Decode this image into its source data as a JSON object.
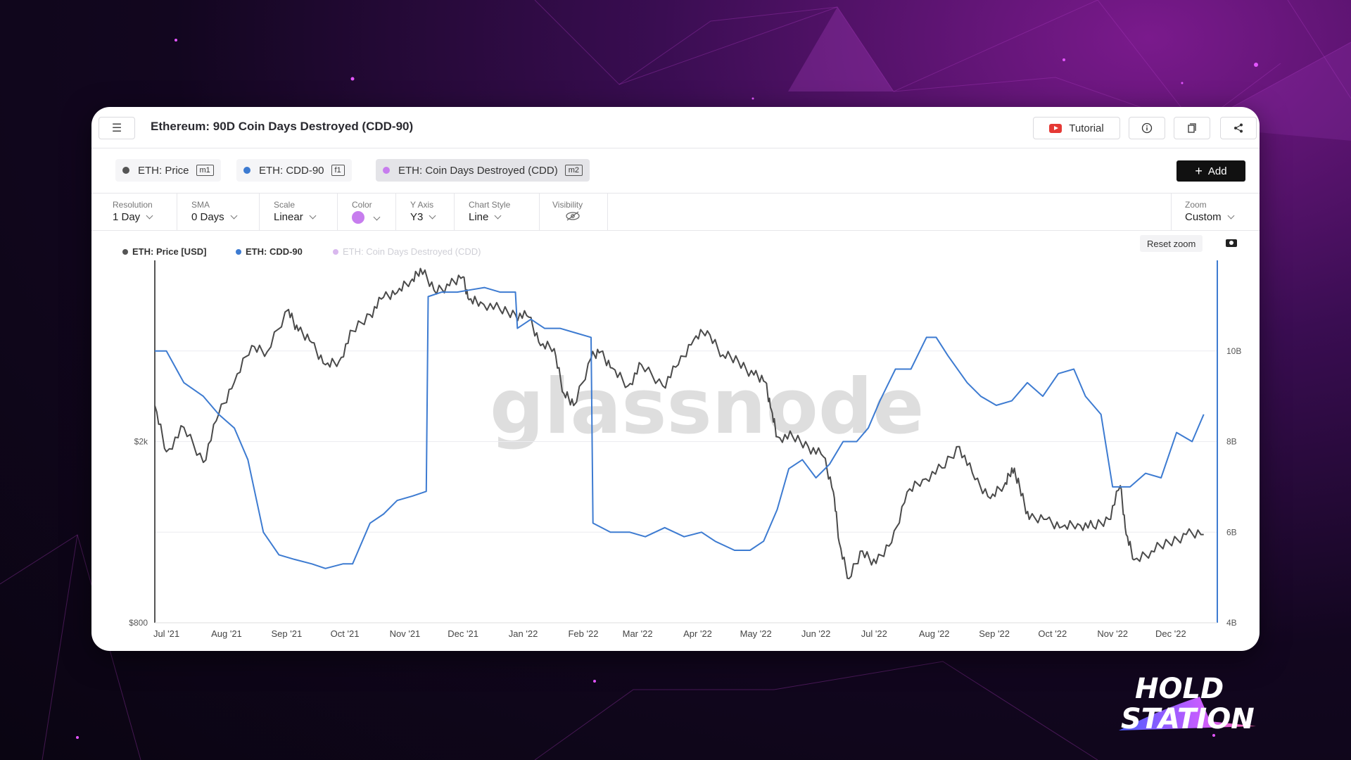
{
  "header": {
    "title": "Ethereum: 90D Coin Days Destroyed (CDD-90)",
    "tutorial_label": "Tutorial"
  },
  "metrics": [
    {
      "label": "ETH: Price",
      "tag": "m1",
      "color": "#555555"
    },
    {
      "label": "ETH: CDD-90",
      "tag": "f1",
      "color": "#3d7bd1"
    },
    {
      "label": "ETH: Coin Days Destroyed (CDD)",
      "tag": "m2",
      "color": "#c77dee"
    }
  ],
  "add_label": "Add",
  "controls": {
    "resolution": {
      "label": "Resolution",
      "value": "1 Day"
    },
    "sma": {
      "label": "SMA",
      "value": "0 Days"
    },
    "scale": {
      "label": "Scale",
      "value": "Linear"
    },
    "color": {
      "label": "Color",
      "value": "#c77dee"
    },
    "yaxis": {
      "label": "Y Axis",
      "value": "Y3"
    },
    "chart_style": {
      "label": "Chart Style",
      "value": "Line"
    },
    "visibility": {
      "label": "Visibility",
      "icon": "eye-slash-icon"
    },
    "zoom": {
      "label": "Zoom",
      "value": "Custom"
    }
  },
  "reset_zoom_label": "Reset zoom",
  "watermark": "glassnode",
  "logo": {
    "line1": "HOLD",
    "line2": "STATION"
  },
  "chart_data": {
    "type": "line",
    "legend": [
      "ETH: Price [USD]",
      "ETH: CDD-90",
      "ETH: Coin Days Destroyed (CDD)"
    ],
    "legend_placement": "top-left",
    "x_ticks": [
      "Jul '21",
      "Aug '21",
      "Sep '21",
      "Oct '21",
      "Nov '21",
      "Dec '21",
      "Jan '22",
      "Feb '22",
      "Mar '22",
      "Apr '22",
      "May '22",
      "Jun '22",
      "Jul '22",
      "Aug '22",
      "Sep '22",
      "Oct '22",
      "Nov '22",
      "Dec '22"
    ],
    "x_range": [
      "2021-06-25",
      "2022-12-25"
    ],
    "y_left": {
      "ticks": [
        "$800",
        "$2k"
      ],
      "scale": "log",
      "range": [
        800,
        5000
      ]
    },
    "y_right": {
      "ticks": [
        "4B",
        "6B",
        "8B",
        "10B"
      ],
      "range": [
        4,
        12
      ]
    },
    "series": [
      {
        "name": "ETH: Price [USD]",
        "axis": "left",
        "color": "#4a4a4a",
        "x": [
          "2021-06-25",
          "2021-07-01",
          "2021-07-10",
          "2021-07-20",
          "2021-07-28",
          "2021-08-05",
          "2021-08-14",
          "2021-08-22",
          "2021-09-02",
          "2021-09-07",
          "2021-09-14",
          "2021-09-21",
          "2021-09-28",
          "2021-10-05",
          "2021-10-14",
          "2021-10-21",
          "2021-10-28",
          "2021-11-04",
          "2021-11-09",
          "2021-11-16",
          "2021-11-24",
          "2021-12-01",
          "2021-12-04",
          "2021-12-10",
          "2021-12-20",
          "2021-12-28",
          "2022-01-04",
          "2022-01-10",
          "2022-01-17",
          "2022-01-22",
          "2022-01-27",
          "2022-02-05",
          "2022-02-10",
          "2022-02-16",
          "2022-02-24",
          "2022-03-03",
          "2022-03-14",
          "2022-03-22",
          "2022-03-30",
          "2022-04-06",
          "2022-04-14",
          "2022-04-22",
          "2022-04-30",
          "2022-05-06",
          "2022-05-09",
          "2022-05-12",
          "2022-05-20",
          "2022-05-28",
          "2022-06-05",
          "2022-06-10",
          "2022-06-13",
          "2022-06-18",
          "2022-06-25",
          "2022-07-02",
          "2022-07-10",
          "2022-07-18",
          "2022-07-26",
          "2022-08-05",
          "2022-08-14",
          "2022-08-22",
          "2022-08-30",
          "2022-09-06",
          "2022-09-10",
          "2022-09-14",
          "2022-09-19",
          "2022-09-28",
          "2022-10-06",
          "2022-10-14",
          "2022-10-22",
          "2022-10-30",
          "2022-11-05",
          "2022-11-08",
          "2022-11-12",
          "2022-11-21",
          "2022-11-30",
          "2022-12-09",
          "2022-12-18"
        ],
        "y": [
          2400,
          1900,
          2150,
          1800,
          2300,
          2700,
          3250,
          3150,
          3900,
          3500,
          3300,
          2950,
          3000,
          3500,
          3800,
          4150,
          4250,
          4500,
          4800,
          4300,
          4400,
          4600,
          4100,
          4050,
          3900,
          3800,
          3750,
          3250,
          3200,
          2550,
          2400,
          3050,
          3150,
          2900,
          2650,
          2950,
          2650,
          2950,
          3350,
          3500,
          3100,
          3000,
          2800,
          2700,
          2350,
          2050,
          2050,
          1950,
          1850,
          1550,
          1200,
          1000,
          1150,
          1080,
          1200,
          1550,
          1650,
          1750,
          1950,
          1650,
          1500,
          1600,
          1750,
          1600,
          1350,
          1350,
          1300,
          1320,
          1300,
          1350,
          1600,
          1250,
          1100,
          1150,
          1200,
          1250,
          1250
        ]
      },
      {
        "name": "ETH: CDD-90",
        "axis": "right",
        "color": "#3d7bd1",
        "x": [
          "2021-06-25",
          "2021-07-01",
          "2021-07-10",
          "2021-07-20",
          "2021-07-28",
          "2021-08-05",
          "2021-08-12",
          "2021-08-20",
          "2021-08-28",
          "2021-09-05",
          "2021-09-14",
          "2021-09-21",
          "2021-09-30",
          "2021-10-05",
          "2021-10-14",
          "2021-10-21",
          "2021-10-28",
          "2021-11-05",
          "2021-11-12",
          "2021-11-13",
          "2021-11-20",
          "2021-11-28",
          "2021-12-05",
          "2021-12-12",
          "2021-12-20",
          "2021-12-28",
          "2021-12-29",
          "2022-01-05",
          "2022-01-12",
          "2022-01-20",
          "2022-01-28",
          "2022-02-05",
          "2022-02-06",
          "2022-02-15",
          "2022-02-25",
          "2022-03-05",
          "2022-03-15",
          "2022-03-25",
          "2022-04-03",
          "2022-04-10",
          "2022-04-20",
          "2022-04-28",
          "2022-05-05",
          "2022-05-12",
          "2022-05-18",
          "2022-05-25",
          "2022-06-01",
          "2022-06-08",
          "2022-06-15",
          "2022-06-22",
          "2022-06-28",
          "2022-07-04",
          "2022-07-12",
          "2022-07-20",
          "2022-07-28",
          "2022-08-02",
          "2022-08-08",
          "2022-08-18",
          "2022-08-25",
          "2022-09-02",
          "2022-09-10",
          "2022-09-18",
          "2022-09-26",
          "2022-10-04",
          "2022-10-12",
          "2022-10-18",
          "2022-10-26",
          "2022-11-01",
          "2022-11-10",
          "2022-11-18",
          "2022-11-26",
          "2022-12-04",
          "2022-12-12",
          "2022-12-18"
        ],
        "y": [
          10.0,
          10.0,
          9.3,
          9.0,
          8.6,
          8.3,
          7.6,
          6.0,
          5.5,
          5.4,
          5.3,
          5.2,
          5.3,
          5.3,
          6.2,
          6.4,
          6.7,
          6.8,
          6.9,
          11.2,
          11.3,
          11.3,
          11.35,
          11.4,
          11.3,
          11.3,
          10.5,
          10.7,
          10.5,
          10.5,
          10.4,
          10.3,
          6.2,
          6.0,
          6.0,
          5.9,
          6.1,
          5.9,
          6.0,
          5.8,
          5.6,
          5.6,
          5.8,
          6.5,
          7.4,
          7.6,
          7.2,
          7.5,
          8.0,
          8.0,
          8.3,
          8.9,
          9.6,
          9.6,
          10.3,
          10.3,
          9.9,
          9.3,
          9.0,
          8.8,
          8.9,
          9.3,
          9.0,
          9.5,
          9.6,
          9.0,
          8.6,
          7.0,
          7.0,
          7.3,
          7.2,
          8.2,
          8.0,
          8.6
        ]
      }
    ]
  }
}
